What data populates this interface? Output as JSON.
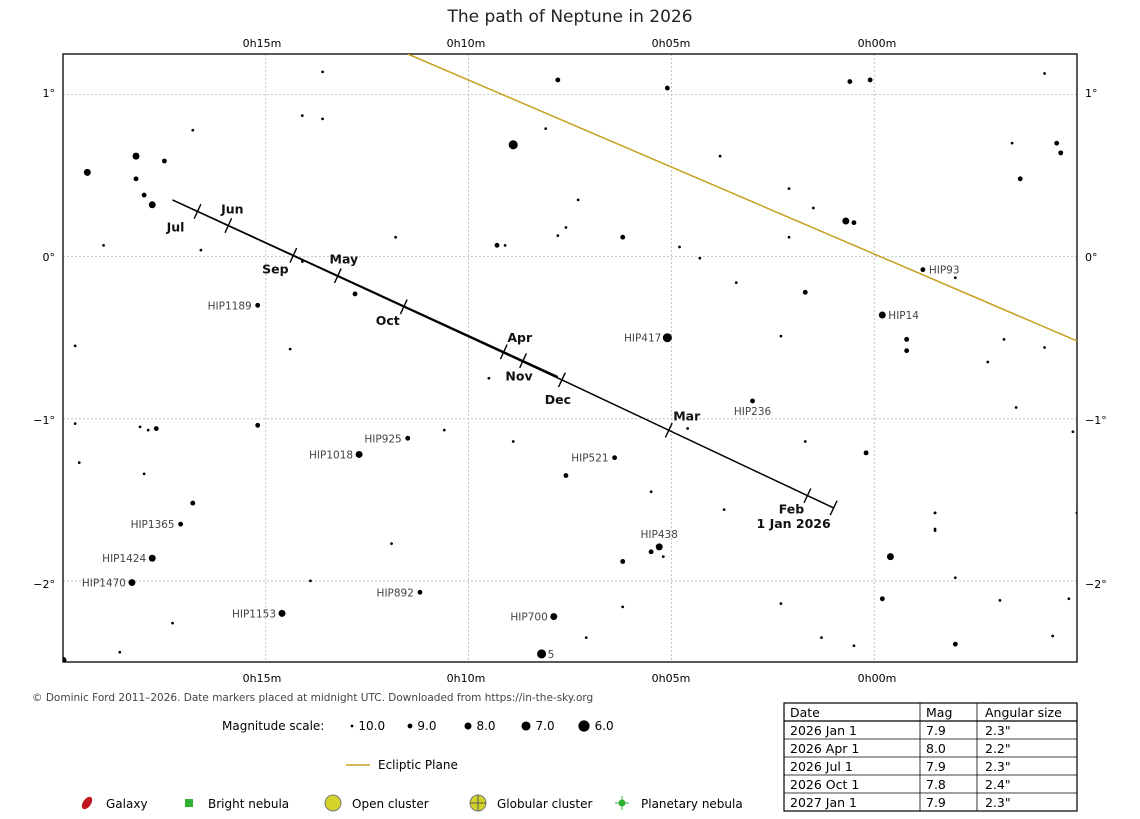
{
  "chart_data": {
    "type": "scatter",
    "title": "The path of Neptune in 2026",
    "x_axis_ticks": [
      "0h15m",
      "0h10m",
      "0h05m",
      "0h00m"
    ],
    "y_axis_ticks": [
      "1°",
      "0°",
      "−1°",
      "−2°"
    ],
    "x_ticks_ra_minutes": [
      15,
      10,
      5,
      0
    ],
    "y_ticks_dec_deg": [
      1,
      0,
      -1,
      -2
    ],
    "ra_range_minutes": [
      20,
      -5
    ],
    "dec_range_deg": [
      -2.5,
      1.25
    ],
    "grid": true,
    "path": [
      {
        "ra": 1.0,
        "dec": -1.55
      },
      {
        "ra": 7.7,
        "dec": -0.76
      },
      {
        "ra": 17.3,
        "dec": 0.35
      },
      {
        "ra": 7.8,
        "dec": -0.74
      }
    ],
    "month_markers": [
      {
        "label": "1 Jan 2026",
        "ra": 1.0,
        "dec": -1.55,
        "end": true
      },
      {
        "label": "Feb",
        "ra": 1.3,
        "dec": -1.29
      },
      {
        "label": "Mar",
        "ra": 4.8,
        "dec": -0.93
      },
      {
        "label": "Apr",
        "ra": 8.9,
        "dec": -0.46
      },
      {
        "label": "May",
        "ra": 13.1,
        "dec": -0.05
      },
      {
        "label": "Jun",
        "ra": 15.8,
        "dec": 0.26
      },
      {
        "label": "Jul",
        "ra": 16.7,
        "dec": 0.27
      },
      {
        "label": "Sep",
        "ra": 14.3,
        "dec": 0.02
      },
      {
        "label": "Oct",
        "ra": 11.6,
        "dec": -0.31
      },
      {
        "label": "Nov",
        "ra": 8.6,
        "dec": -0.61
      },
      {
        "label": "Dec",
        "ra": 7.7,
        "dec": -0.76,
        "end": true
      }
    ],
    "ecliptic": [
      {
        "ra": 11.5,
        "dec": 1.25
      },
      {
        "ra": -5.0,
        "dec": -0.52
      }
    ],
    "labeled_stars": [
      {
        "name": "HIP93",
        "ra": -1.2,
        "dec": -0.08,
        "mag": 9.0
      },
      {
        "name": "HIP14",
        "ra": -0.2,
        "dec": -0.36,
        "mag": 8.0
      },
      {
        "name": "HIP1189",
        "ra": 15.2,
        "dec": -0.3,
        "mag": 9.0
      },
      {
        "name": "HIP417",
        "ra": 5.1,
        "dec": -0.5,
        "mag": 7.0
      },
      {
        "name": "HIP236",
        "ra": 3.0,
        "dec": -0.89,
        "mag": 9.0
      },
      {
        "name": "HIP925",
        "ra": 11.5,
        "dec": -1.12,
        "mag": 9.0
      },
      {
        "name": "HIP1018",
        "ra": 12.7,
        "dec": -1.22,
        "mag": 8.0
      },
      {
        "name": "HIP521",
        "ra": 6.4,
        "dec": -1.24,
        "mag": 9.0
      },
      {
        "name": "HIP1365",
        "ra": 17.1,
        "dec": -1.65,
        "mag": 9.0
      },
      {
        "name": "HIP438",
        "ra": 5.3,
        "dec": -1.79,
        "mag": 8.0
      },
      {
        "name": "HIP1424",
        "ra": 17.8,
        "dec": -1.86,
        "mag": 8.0
      },
      {
        "name": "HIP1470",
        "ra": 18.3,
        "dec": -2.01,
        "mag": 8.0
      },
      {
        "name": "HIP892",
        "ra": 11.2,
        "dec": -2.07,
        "mag": 9.0
      },
      {
        "name": "HIP1153",
        "ra": 14.6,
        "dec": -2.2,
        "mag": 8.0
      },
      {
        "name": "HIP700",
        "ra": 7.9,
        "dec": -2.22,
        "mag": 8.0
      },
      {
        "name": "5",
        "ra": 8.2,
        "dec": -2.45,
        "mag": 7.0
      }
    ],
    "stars": [
      {
        "ra": 13.6,
        "dec": 1.14,
        "mag": 10.0
      },
      {
        "ra": 7.8,
        "dec": 1.09,
        "mag": 9.0
      },
      {
        "ra": 5.1,
        "dec": 1.04,
        "mag": 9.0
      },
      {
        "ra": 0.6,
        "dec": 1.08,
        "mag": 9.0
      },
      {
        "ra": 0.1,
        "dec": 1.09,
        "mag": 9.0
      },
      {
        "ra": -4.2,
        "dec": 1.13,
        "mag": 10.0
      },
      {
        "ra": 16.8,
        "dec": 0.78,
        "mag": 10.0
      },
      {
        "ra": 14.1,
        "dec": 0.87,
        "mag": 10.0
      },
      {
        "ra": 13.6,
        "dec": 0.85,
        "mag": 10.0
      },
      {
        "ra": 8.1,
        "dec": 0.79,
        "mag": 10.0
      },
      {
        "ra": 8.9,
        "dec": 0.69,
        "mag": 7.0
      },
      {
        "ra": 18.2,
        "dec": 0.62,
        "mag": 8.0
      },
      {
        "ra": 17.5,
        "dec": 0.59,
        "mag": 9.0
      },
      {
        "ra": 19.4,
        "dec": 0.52,
        "mag": 8.0
      },
      {
        "ra": 18.2,
        "dec": 0.48,
        "mag": 9.0
      },
      {
        "ra": 18.0,
        "dec": 0.38,
        "mag": 9.0
      },
      {
        "ra": 17.8,
        "dec": 0.32,
        "mag": 8.0
      },
      {
        "ra": 3.8,
        "dec": 0.62,
        "mag": 10.0
      },
      {
        "ra": -3.4,
        "dec": 0.7,
        "mag": 10.0
      },
      {
        "ra": -4.5,
        "dec": 0.7,
        "mag": 9.0
      },
      {
        "ra": -4.6,
        "dec": 0.64,
        "mag": 9.0
      },
      {
        "ra": -3.6,
        "dec": 0.48,
        "mag": 9.0
      },
      {
        "ra": 2.1,
        "dec": 0.42,
        "mag": 10.0
      },
      {
        "ra": 1.5,
        "dec": 0.3,
        "mag": 10.0
      },
      {
        "ra": 0.7,
        "dec": 0.22,
        "mag": 8.0
      },
      {
        "ra": 0.5,
        "dec": 0.21,
        "mag": 9.0
      },
      {
        "ra": 7.3,
        "dec": 0.35,
        "mag": 10.0
      },
      {
        "ra": 7.6,
        "dec": 0.18,
        "mag": 10.0
      },
      {
        "ra": 7.8,
        "dec": 0.13,
        "mag": 10.0
      },
      {
        "ra": 6.2,
        "dec": 0.12,
        "mag": 9.0
      },
      {
        "ra": 9.3,
        "dec": 0.07,
        "mag": 9.0
      },
      {
        "ra": 9.1,
        "dec": 0.07,
        "mag": 10.0
      },
      {
        "ra": 11.8,
        "dec": 0.12,
        "mag": 10.0
      },
      {
        "ra": 19.0,
        "dec": 0.07,
        "mag": 10.0
      },
      {
        "ra": 16.6,
        "dec": 0.04,
        "mag": 10.0
      },
      {
        "ra": 4.8,
        "dec": 0.06,
        "mag": 10.0
      },
      {
        "ra": 4.3,
        "dec": -0.01,
        "mag": 10.0
      },
      {
        "ra": 2.1,
        "dec": 0.12,
        "mag": 10.0
      },
      {
        "ra": 3.4,
        "dec": -0.16,
        "mag": 10.0
      },
      {
        "ra": 1.7,
        "dec": -0.22,
        "mag": 9.0
      },
      {
        "ra": -2.0,
        "dec": -0.13,
        "mag": 10.0
      },
      {
        "ra": 14.1,
        "dec": -0.03,
        "mag": 10.0
      },
      {
        "ra": 12.8,
        "dec": -0.23,
        "mag": 9.0
      },
      {
        "ra": 2.3,
        "dec": -0.49,
        "mag": 10.0
      },
      {
        "ra": -0.8,
        "dec": -0.51,
        "mag": 9.0
      },
      {
        "ra": -0.8,
        "dec": -0.58,
        "mag": 9.0
      },
      {
        "ra": -3.2,
        "dec": -0.51,
        "mag": 10.0
      },
      {
        "ra": -2.8,
        "dec": -0.65,
        "mag": 10.0
      },
      {
        "ra": -4.2,
        "dec": -0.56,
        "mag": 10.0
      },
      {
        "ra": 19.7,
        "dec": -0.55,
        "mag": 10.0
      },
      {
        "ra": 14.4,
        "dec": -0.57,
        "mag": 10.0
      },
      {
        "ra": 9.5,
        "dec": -0.75,
        "mag": 10.0
      },
      {
        "ra": -3.5,
        "dec": -0.93,
        "mag": 10.0
      },
      {
        "ra": 4.6,
        "dec": -1.06,
        "mag": 10.0
      },
      {
        "ra": 15.2,
        "dec": -1.04,
        "mag": 9.0
      },
      {
        "ra": 10.6,
        "dec": -1.07,
        "mag": 10.0
      },
      {
        "ra": 17.7,
        "dec": -1.06,
        "mag": 9.0
      },
      {
        "ra": 18.1,
        "dec": -1.05,
        "mag": 10.0
      },
      {
        "ra": 17.9,
        "dec": -1.07,
        "mag": 10.0
      },
      {
        "ra": 19.7,
        "dec": -1.03,
        "mag": 10.0
      },
      {
        "ra": 8.9,
        "dec": -1.14,
        "mag": 10.0
      },
      {
        "ra": 1.7,
        "dec": -1.14,
        "mag": 10.0
      },
      {
        "ra": -4.9,
        "dec": -1.08,
        "mag": 10.0
      },
      {
        "ra": 19.6,
        "dec": -1.27,
        "mag": 10.0
      },
      {
        "ra": 18.0,
        "dec": -1.34,
        "mag": 10.0
      },
      {
        "ra": 7.6,
        "dec": -1.35,
        "mag": 9.0
      },
      {
        "ra": 0.2,
        "dec": -1.21,
        "mag": 9.0
      },
      {
        "ra": 5.5,
        "dec": -1.45,
        "mag": 10.0
      },
      {
        "ra": 16.8,
        "dec": -1.52,
        "mag": 9.0
      },
      {
        "ra": 3.7,
        "dec": -1.56,
        "mag": 10.0
      },
      {
        "ra": -5.0,
        "dec": -1.58,
        "mag": 10.0
      },
      {
        "ra": -1.5,
        "dec": -1.58,
        "mag": 10.0
      },
      {
        "ra": -1.5,
        "dec": -1.58,
        "mag": 10.0
      },
      {
        "ra": -1.5,
        "dec": -1.69,
        "mag": 10.0
      },
      {
        "ra": 11.9,
        "dec": -1.77,
        "mag": 10.0
      },
      {
        "ra": 6.2,
        "dec": -1.88,
        "mag": 9.0
      },
      {
        "ra": 5.5,
        "dec": -1.82,
        "mag": 9.0
      },
      {
        "ra": 5.2,
        "dec": -1.85,
        "mag": 10.0
      },
      {
        "ra": -0.4,
        "dec": -1.85,
        "mag": 8.0
      },
      {
        "ra": -1.5,
        "dec": -1.68,
        "mag": 10.0
      },
      {
        "ra": -2.0,
        "dec": -1.98,
        "mag": 10.0
      },
      {
        "ra": 13.9,
        "dec": -2.0,
        "mag": 10.0
      },
      {
        "ra": 6.2,
        "dec": -2.16,
        "mag": 10.0
      },
      {
        "ra": 2.3,
        "dec": -2.14,
        "mag": 10.0
      },
      {
        "ra": -0.2,
        "dec": -2.11,
        "mag": 9.0
      },
      {
        "ra": -3.1,
        "dec": -2.12,
        "mag": 10.0
      },
      {
        "ra": -4.8,
        "dec": -2.11,
        "mag": 10.0
      },
      {
        "ra": 17.3,
        "dec": -2.26,
        "mag": 10.0
      },
      {
        "ra": 7.1,
        "dec": -2.35,
        "mag": 10.0
      },
      {
        "ra": 1.3,
        "dec": -2.35,
        "mag": 10.0
      },
      {
        "ra": 0.5,
        "dec": -2.4,
        "mag": 10.0
      },
      {
        "ra": -2.0,
        "dec": -2.39,
        "mag": 9.0
      },
      {
        "ra": -4.4,
        "dec": -2.34,
        "mag": 10.0
      },
      {
        "ra": 18.6,
        "dec": -2.44,
        "mag": 10.0
      },
      {
        "ra": 20.0,
        "dec": -2.49,
        "mag": 8.0
      }
    ],
    "credit": "© Dominic Ford 2011–2026. Date markers placed at midnight UTC. Downloaded from https://in-the-sky.org",
    "magnitude_scale": {
      "label": "Magnitude scale:",
      "entries": [
        {
          "label": "10.0",
          "mag": 10.0
        },
        {
          "label": "9.0",
          "mag": 9.0
        },
        {
          "label": "8.0",
          "mag": 8.0
        },
        {
          "label": "7.0",
          "mag": 7.0
        },
        {
          "label": "6.0",
          "mag": 6.0
        }
      ]
    },
    "legend": {
      "ecliptic_label": "Ecliptic Plane",
      "galaxy": "Galaxy",
      "bright_nebula": "Bright nebula",
      "open_cluster": "Open cluster",
      "globular_cluster": "Globular cluster",
      "planetary_nebula": "Planetary nebula"
    },
    "table": {
      "headers": [
        "Date",
        "Mag",
        "Angular size"
      ],
      "rows": [
        [
          "2026 Jan 1",
          "7.9",
          "2.3\""
        ],
        [
          "2026 Apr 1",
          "8.0",
          "2.2\""
        ],
        [
          "2026 Jul 1",
          "7.9",
          "2.3\""
        ],
        [
          "2026 Oct 1",
          "7.8",
          "2.4\""
        ],
        [
          "2027 Jan 1",
          "7.9",
          "2.3\""
        ]
      ]
    },
    "colors": {
      "ecliptic": "#c8a020",
      "path": "#000000",
      "grid": "#b8b8b8",
      "galaxy": "#c0141e",
      "bright_nebula": "#30b030",
      "open_cluster": "#d4d428",
      "globular_cluster": "#d4d428",
      "planetary_nebula": "#30b030"
    }
  }
}
